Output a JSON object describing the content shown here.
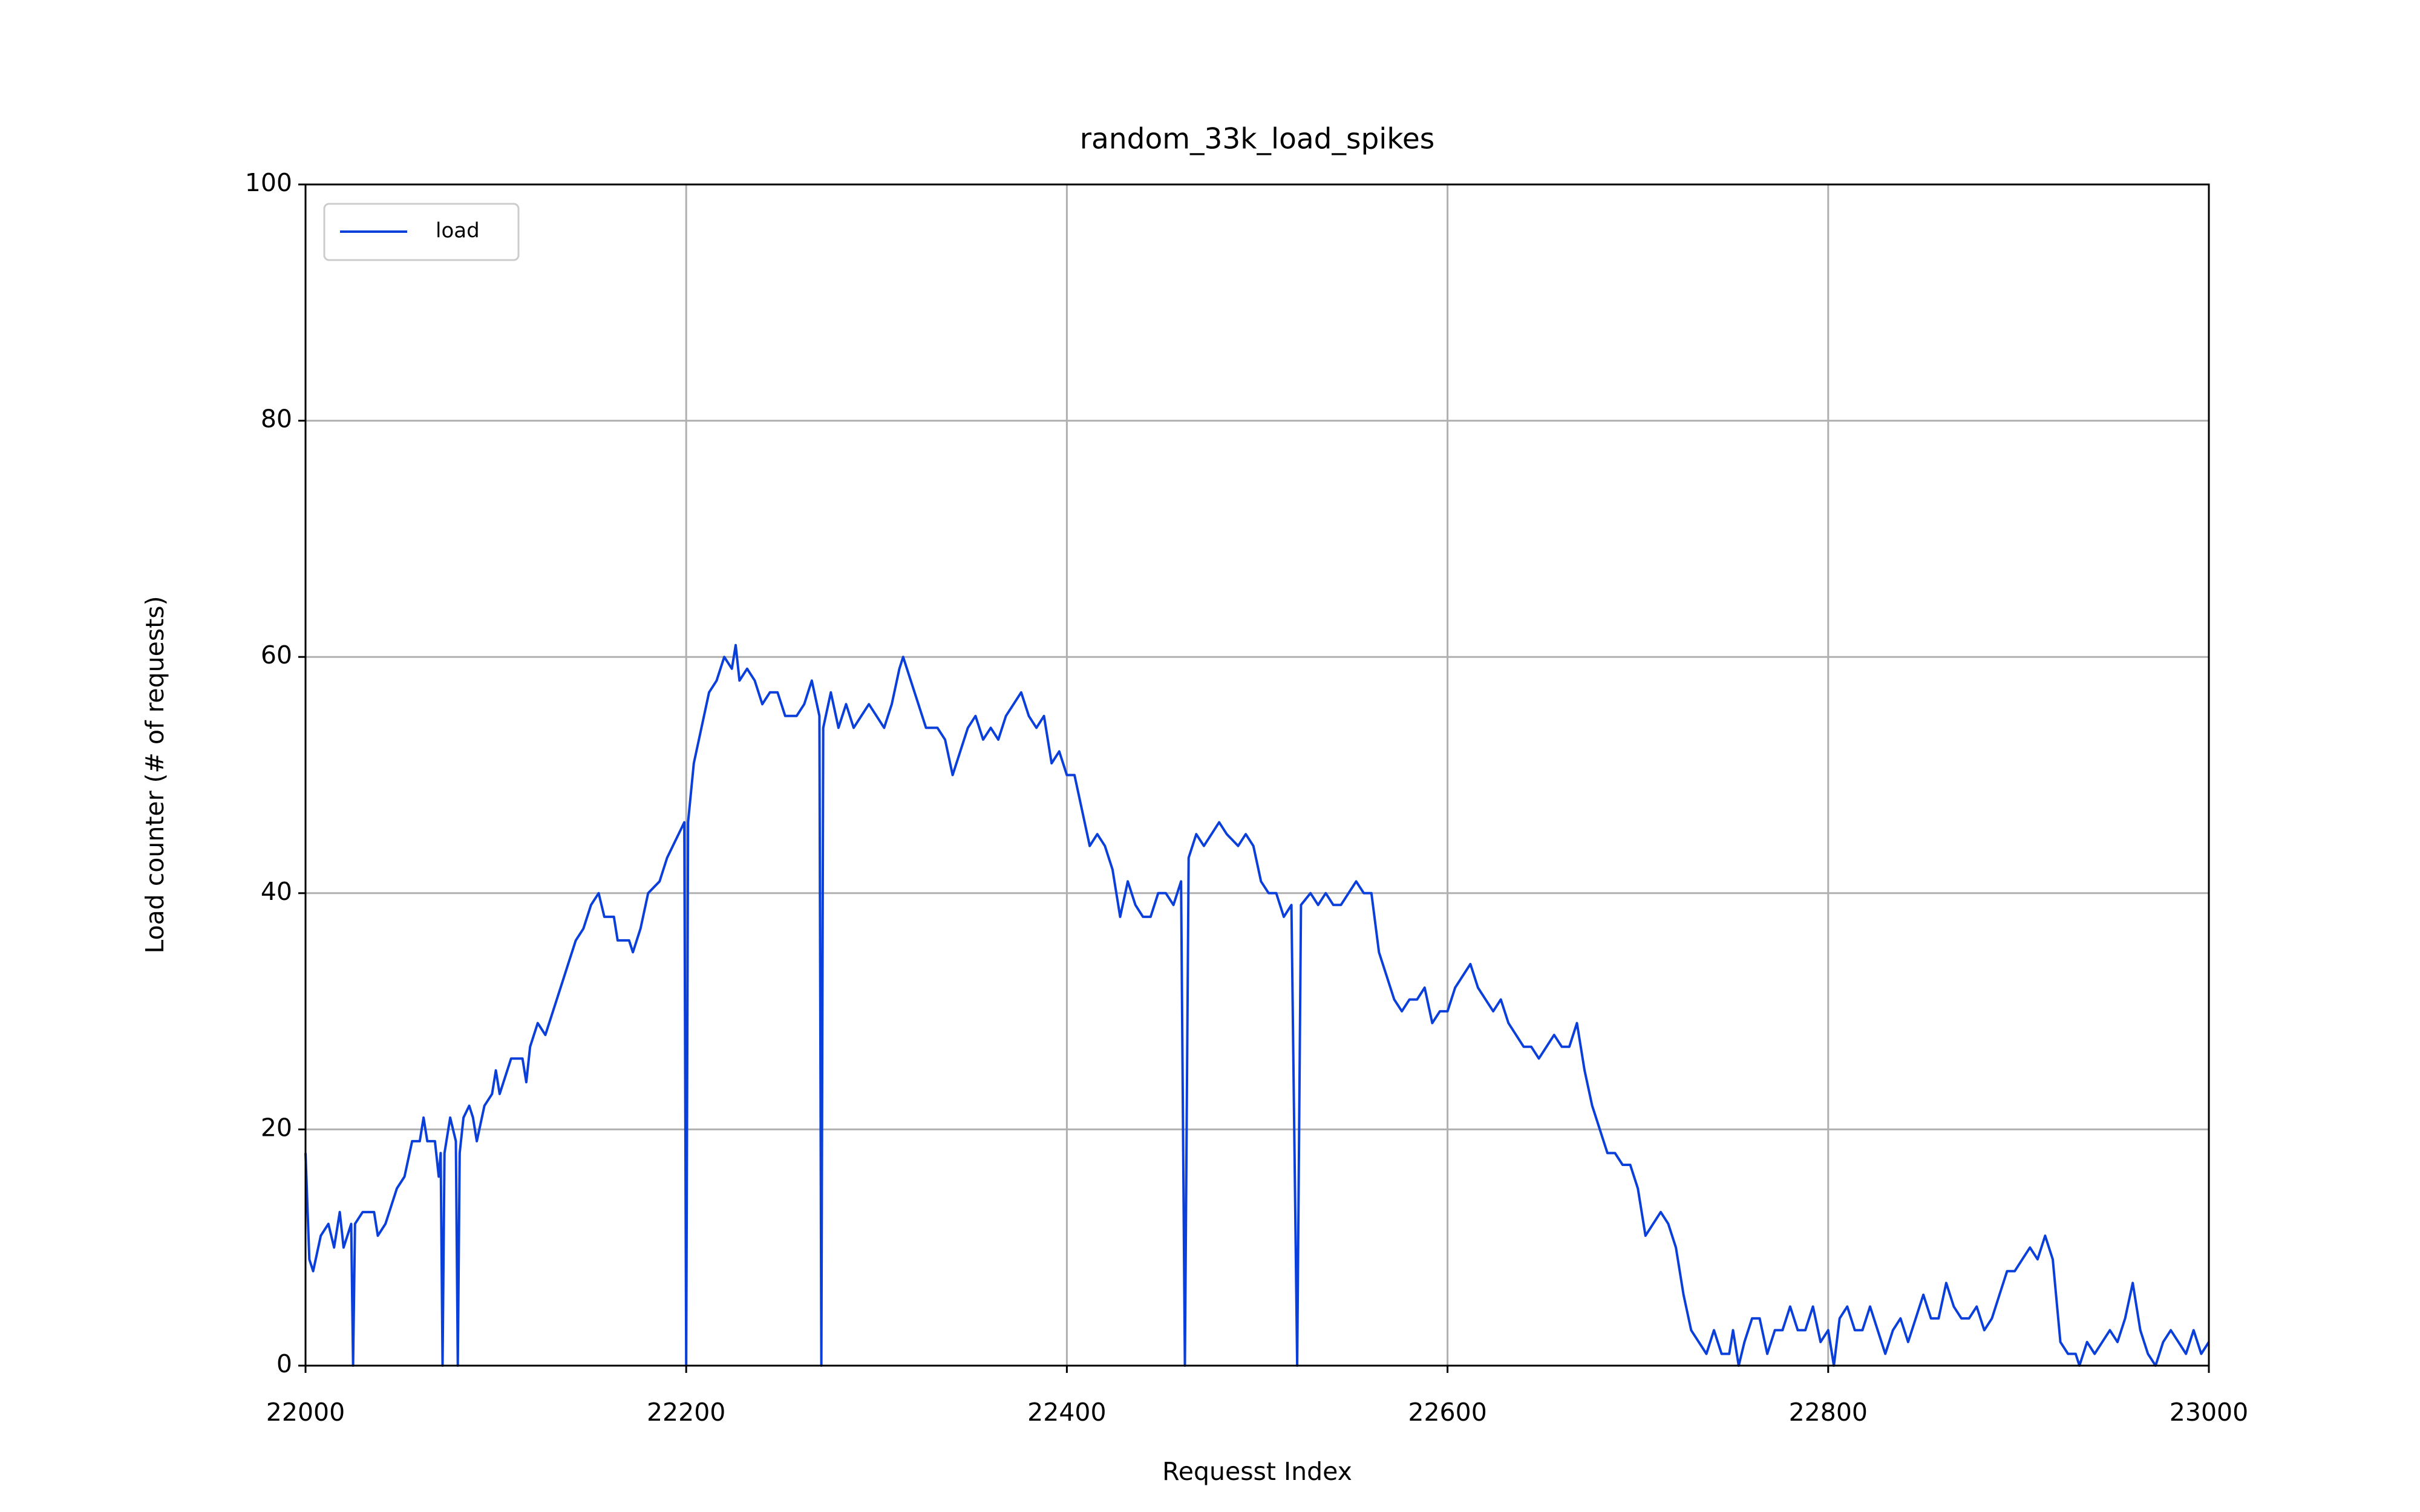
{
  "chart_data": {
    "type": "line",
    "title": "random_33k_load_spikes",
    "x_label": "Requesst Index",
    "y_label": "Load counter (# of requests)",
    "xlim": [
      22000,
      23000
    ],
    "xticks": [
      22000,
      22200,
      22400,
      22600,
      22800,
      23000
    ],
    "ylim": [
      0,
      100
    ],
    "yticks": [
      0,
      20,
      40,
      60,
      80,
      100
    ],
    "grid": true,
    "legend": "upper left",
    "x": [
      22000,
      22002,
      22004,
      22008,
      22012,
      22015,
      22018,
      22020,
      22024,
      22025,
      22026,
      22030,
      22036,
      22038,
      22042,
      22048,
      22052,
      22056,
      22060,
      22062,
      22064,
      22068,
      22070,
      22071,
      22072,
      22073,
      22076,
      22079,
      22080,
      22081,
      22083,
      22086,
      22088,
      22090,
      22094,
      22098,
      22100,
      22102,
      22106,
      22108,
      22114,
      22116,
      22118,
      22122,
      22126,
      22130,
      22134,
      22138,
      22142,
      22146,
      22150,
      22154,
      22157,
      22162,
      22164,
      22170,
      22172,
      22176,
      22180,
      22186,
      22190,
      22196,
      22199,
      22200,
      22201,
      22204,
      22208,
      22212,
      22216,
      22220,
      22224,
      22226,
      22228,
      22232,
      22236,
      22240,
      22244,
      22248,
      22252,
      22258,
      22262,
      22266,
      22270,
      22271,
      22272,
      22276,
      22280,
      22284,
      22288,
      22292,
      22296,
      22300,
      22304,
      22308,
      22312,
      22314,
      22318,
      22322,
      22326,
      22332,
      22336,
      22340,
      22344,
      22348,
      22352,
      22356,
      22360,
      22364,
      22368,
      22372,
      22376,
      22380,
      22384,
      22388,
      22392,
      22396,
      22400,
      22404,
      22408,
      22412,
      22416,
      22420,
      22424,
      22428,
      22432,
      22436,
      22440,
      22444,
      22448,
      22452,
      22456,
      22460,
      22462,
      22464,
      22468,
      22472,
      22476,
      22480,
      22484,
      22490,
      22494,
      22498,
      22502,
      22506,
      22510,
      22514,
      22518,
      22521,
      22523,
      22528,
      22532,
      22536,
      22540,
      22544,
      22548,
      22552,
      22556,
      22560,
      22564,
      22568,
      22572,
      22576,
      22580,
      22584,
      22588,
      22592,
      22596,
      22600,
      22604,
      22608,
      22612,
      22616,
      22620,
      22624,
      22628,
      22632,
      22636,
      22640,
      22644,
      22648,
      22652,
      22656,
      22660,
      22664,
      22668,
      22672,
      22676,
      22680,
      22684,
      22688,
      22692,
      22696,
      22700,
      22704,
      22708,
      22712,
      22716,
      22720,
      22724,
      22728,
      22732,
      22736,
      22740,
      22744,
      22748,
      22750,
      22753,
      22756,
      22760,
      22764,
      22768,
      22772,
      22776,
      22780,
      22784,
      22788,
      22792,
      22796,
      22800,
      22803,
      22806,
      22810,
      22814,
      22818,
      22822,
      22826,
      22830,
      22834,
      22838,
      22842,
      22846,
      22850,
      22854,
      22858,
      22862,
      22866,
      22870,
      22874,
      22878,
      22882,
      22886,
      22890,
      22894,
      22898,
      22902,
      22906,
      22910,
      22914,
      22918,
      22922,
      22926,
      22930,
      22932,
      22936,
      22940,
      22944,
      22948,
      22952,
      22956,
      22960,
      22964,
      22968,
      22972,
      22976,
      22980,
      22984,
      22988,
      22992,
      22996,
      23000
    ],
    "series": [
      {
        "name": "load",
        "color": "#0b3fd9",
        "values": [
          18,
          9,
          8,
          11,
          12,
          10,
          13,
          10,
          12,
          0,
          12,
          13,
          13,
          11,
          12,
          15,
          16,
          19,
          19,
          21,
          19,
          19,
          16,
          18,
          0,
          18,
          21,
          19,
          0,
          18,
          21,
          22,
          21,
          19,
          22,
          23,
          25,
          23,
          25,
          26,
          26,
          24,
          27,
          29,
          28,
          30,
          32,
          34,
          36,
          37,
          39,
          40,
          38,
          38,
          36,
          36,
          35,
          37,
          40,
          41,
          43,
          45,
          46,
          0,
          46,
          51,
          54,
          57,
          58,
          60,
          59,
          61,
          58,
          59,
          58,
          56,
          57,
          57,
          55,
          55,
          56,
          58,
          55,
          0,
          54,
          57,
          54,
          56,
          54,
          55,
          56,
          55,
          54,
          56,
          59,
          60,
          58,
          56,
          54,
          54,
          53,
          50,
          52,
          54,
          55,
          53,
          54,
          53,
          55,
          56,
          57,
          55,
          54,
          55,
          51,
          52,
          50,
          50,
          47,
          44,
          45,
          44,
          42,
          38,
          41,
          39,
          38,
          38,
          40,
          40,
          39,
          41,
          0,
          43,
          45,
          44,
          45,
          46,
          45,
          44,
          45,
          44,
          41,
          40,
          40,
          38,
          39,
          0,
          39,
          40,
          39,
          40,
          39,
          39,
          40,
          41,
          40,
          40,
          35,
          33,
          31,
          30,
          31,
          31,
          32,
          29,
          30,
          30,
          32,
          33,
          34,
          32,
          31,
          30,
          31,
          29,
          28,
          27,
          27,
          26,
          27,
          28,
          27,
          27,
          29,
          25,
          22,
          20,
          18,
          18,
          17,
          17,
          15,
          11,
          12,
          13,
          12,
          10,
          6,
          3,
          2,
          1,
          3,
          1,
          1,
          3,
          0,
          2,
          4,
          4,
          1,
          3,
          3,
          5,
          3,
          3,
          5,
          2,
          3,
          0,
          4,
          5,
          3,
          3,
          5,
          3,
          1,
          3,
          4,
          2,
          4,
          6,
          4,
          4,
          7,
          5,
          4,
          4,
          5,
          3,
          4,
          6,
          8,
          8,
          9,
          10,
          9,
          11,
          9,
          2,
          1,
          1,
          0,
          2,
          1,
          2,
          3,
          2,
          4,
          7,
          3,
          1,
          0,
          2,
          3,
          2,
          1,
          3,
          1,
          2
        ]
      }
    ]
  }
}
